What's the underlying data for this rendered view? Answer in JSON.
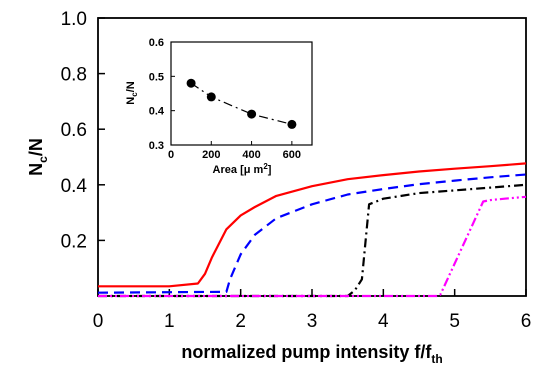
{
  "chart_data": [
    {
      "type": "line",
      "xlabel": "normalized pump intensity f/f",
      "xlabel_sub": "th",
      "ylabel": "N",
      "ylabel_sub": "c",
      "ylabel_suffix": "/N",
      "xlim": [
        0,
        6
      ],
      "ylim": [
        0,
        1.0
      ],
      "xticks": [
        "0",
        "1",
        "2",
        "3",
        "4",
        "5",
        "6"
      ],
      "yticks": [
        "0.2",
        "0.4",
        "0.6",
        "0.8",
        "1.0"
      ],
      "ytick_values": [
        0.2,
        0.4,
        0.6,
        0.8,
        1.0
      ],
      "grid": false,
      "series": [
        {
          "color": "#ff0000",
          "dash": "solid",
          "x": [
            0,
            1.0,
            1.4,
            1.5,
            1.6,
            1.8,
            2.0,
            2.2,
            2.5,
            3.0,
            3.5,
            4.0,
            4.5,
            5.0,
            5.5,
            6.0
          ],
          "y": [
            0.035,
            0.035,
            0.045,
            0.08,
            0.14,
            0.24,
            0.29,
            0.32,
            0.36,
            0.395,
            0.42,
            0.435,
            0.448,
            0.458,
            0.467,
            0.477
          ]
        },
        {
          "color": "#0000ff",
          "dash": "dashed",
          "x": [
            0,
            1.8,
            1.85,
            2.0,
            2.2,
            2.5,
            3.0,
            3.5,
            4.0,
            4.5,
            5.0,
            5.5,
            6.0
          ],
          "y": [
            0.012,
            0.015,
            0.06,
            0.15,
            0.22,
            0.28,
            0.33,
            0.365,
            0.385,
            0.402,
            0.415,
            0.427,
            0.437
          ]
        },
        {
          "color": "#000000",
          "dash": "dashdot",
          "x": [
            0,
            3.5,
            3.6,
            3.7,
            3.8,
            4.0,
            4.5,
            5.0,
            5.5,
            6.0
          ],
          "y": [
            0.0,
            0.0,
            0.02,
            0.06,
            0.33,
            0.35,
            0.37,
            0.38,
            0.39,
            0.4
          ]
        },
        {
          "color": "#ff00ff",
          "dash": "dashdotdot",
          "x": [
            0,
            4.75,
            4.8,
            5.4,
            5.5,
            5.7,
            6.0
          ],
          "y": [
            0.0,
            0.0,
            0.005,
            0.34,
            0.345,
            0.35,
            0.357
          ]
        }
      ]
    },
    {
      "type": "line",
      "xlabel": "Area [",
      "xlabel_unit": "μ m",
      "xlabel_sup": "2",
      "xlabel_end": "]",
      "ylabel": "N",
      "ylabel_sub": "c",
      "ylabel_suffix": "/N",
      "xlim": [
        0,
        700
      ],
      "ylim": [
        0.3,
        0.6
      ],
      "xticks": [
        "0",
        "200",
        "400",
        "600"
      ],
      "xtick_values": [
        0,
        200,
        400,
        600
      ],
      "yticks": [
        "0.3",
        "0.4",
        "0.5",
        "0.6"
      ],
      "ytick_values": [
        0.3,
        0.4,
        0.5,
        0.6
      ],
      "grid": false,
      "series": [
        {
          "color": "#000000",
          "dash": "dashdot",
          "marker": "circle",
          "x": [
            100,
            200,
            400,
            600
          ],
          "y": [
            0.48,
            0.44,
            0.39,
            0.36
          ]
        }
      ]
    }
  ]
}
